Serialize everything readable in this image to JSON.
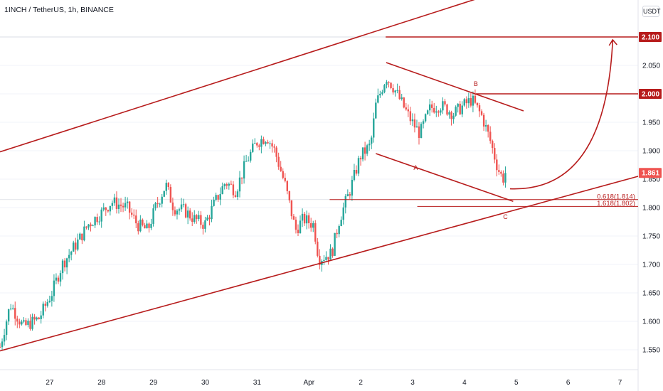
{
  "header": {
    "symbol_title": "1INCH / TetherUS, 1h, BINANCE",
    "currency_label": "USDT"
  },
  "colors": {
    "up": "#26a69a",
    "down": "#ef5350",
    "drawing": "#b71c1c",
    "grid": "#f0f3fa",
    "axis_text": "#131722"
  },
  "chart_data": {
    "type": "candlestick",
    "title": "1INCH / TetherUS, 1h, BINANCE",
    "ylim": [
      1.515,
      2.165
    ],
    "y_ticks": [
      "1.550",
      "1.600",
      "1.650",
      "1.700",
      "1.750",
      "1.800",
      "1.850",
      "1.900",
      "1.950",
      "2.000",
      "2.050",
      "2.100"
    ],
    "x_ticks": [
      {
        "label": "27",
        "t": 26.96
      },
      {
        "label": "28",
        "t": 27.96
      },
      {
        "label": "29",
        "t": 28.96
      },
      {
        "label": "30",
        "t": 29.96
      },
      {
        "label": "31",
        "t": 30.96
      },
      {
        "label": "Apr",
        "t": 31.96
      },
      {
        "label": "2",
        "t": 32.96
      },
      {
        "label": "3",
        "t": 33.96
      },
      {
        "label": "4",
        "t": 34.96
      },
      {
        "label": "5",
        "t": 35.96
      },
      {
        "label": "6",
        "t": 36.96
      },
      {
        "label": "7",
        "t": 37.96
      }
    ],
    "xlim": [
      26.0,
      38.31
    ],
    "grid": "horizontal",
    "price_waypoints": [
      [
        26.0,
        1.555
      ],
      [
        26.2,
        1.63
      ],
      [
        26.45,
        1.59
      ],
      [
        26.75,
        1.605
      ],
      [
        27.0,
        1.65
      ],
      [
        27.2,
        1.7
      ],
      [
        27.5,
        1.74
      ],
      [
        27.7,
        1.77
      ],
      [
        27.95,
        1.79
      ],
      [
        28.15,
        1.81
      ],
      [
        28.45,
        1.8
      ],
      [
        28.65,
        1.77
      ],
      [
        28.85,
        1.76
      ],
      [
        29.0,
        1.8
      ],
      [
        29.2,
        1.84
      ],
      [
        29.35,
        1.8
      ],
      [
        29.55,
        1.795
      ],
      [
        29.75,
        1.78
      ],
      [
        29.95,
        1.77
      ],
      [
        30.15,
        1.81
      ],
      [
        30.35,
        1.845
      ],
      [
        30.55,
        1.83
      ],
      [
        30.75,
        1.88
      ],
      [
        30.95,
        1.915
      ],
      [
        31.15,
        1.925
      ],
      [
        31.3,
        1.9
      ],
      [
        31.5,
        1.84
      ],
      [
        31.7,
        1.76
      ],
      [
        31.85,
        1.78
      ],
      [
        32.05,
        1.77
      ],
      [
        32.15,
        1.71
      ],
      [
        32.4,
        1.72
      ],
      [
        32.55,
        1.78
      ],
      [
        32.75,
        1.83
      ],
      [
        32.95,
        1.89
      ],
      [
        33.15,
        1.91
      ],
      [
        33.25,
        1.98
      ],
      [
        33.45,
        2.03
      ],
      [
        33.6,
        2.01
      ],
      [
        33.8,
        1.975
      ],
      [
        33.95,
        1.95
      ],
      [
        34.1,
        1.93
      ],
      [
        34.3,
        1.975
      ],
      [
        34.5,
        1.98
      ],
      [
        34.75,
        1.965
      ],
      [
        34.95,
        1.98
      ],
      [
        35.1,
        1.99
      ],
      [
        35.3,
        1.96
      ],
      [
        35.45,
        1.92
      ],
      [
        35.6,
        1.87
      ],
      [
        35.7,
        1.85
      ],
      [
        35.75,
        1.861
      ]
    ],
    "price_label": "1.861",
    "drawings": {
      "channel_upper": [
        [
          26.0,
          1.898
        ],
        [
          35.81,
          2.185
        ]
      ],
      "channel_lower": [
        [
          26.0,
          1.548
        ],
        [
          38.31,
          1.855
        ]
      ],
      "falling_wedge_upper": [
        [
          33.45,
          2.055
        ],
        [
          36.1,
          1.97
        ]
      ],
      "falling_wedge_lower": [
        [
          33.25,
          1.895
        ],
        [
          35.9,
          1.811
        ]
      ],
      "target_lines": [
        {
          "from": 33.44,
          "price": 2.1,
          "label": "2.100"
        },
        {
          "from": 35.18,
          "price": 2.0,
          "label": "2.000"
        }
      ],
      "projection_arrow": {
        "start": [
          35.84,
          1.833
        ],
        "end": [
          37.82,
          2.095
        ]
      }
    },
    "wave_labels": [
      {
        "text": "A",
        "t": 34.02,
        "price": 1.866
      },
      {
        "text": "B",
        "t": 35.18,
        "price": 2.014
      },
      {
        "text": "C",
        "t": 35.75,
        "price": 1.78
      }
    ],
    "fib_levels": [
      {
        "label": "0.618(1.814)",
        "price": 1.814,
        "from": 32.36
      },
      {
        "label": "1.618(1.802)",
        "price": 1.802,
        "from": 34.05
      }
    ]
  }
}
